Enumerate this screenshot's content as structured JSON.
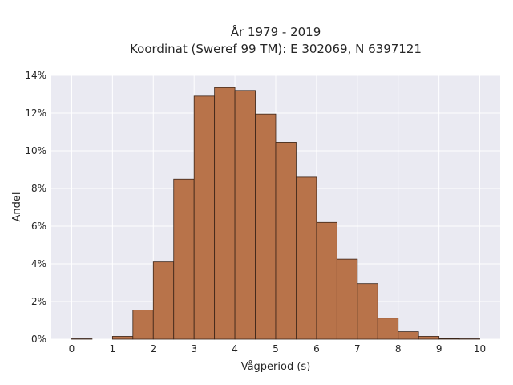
{
  "chart_data": {
    "type": "bar",
    "title_line1": "År 1979 - 2019",
    "title_line2": "Koordinat (Sweref 99 TM): E 302069, N 6397121",
    "xlabel": "Vågperiod (s)",
    "ylabel": "Andel",
    "xlim": [
      -0.5,
      10.5
    ],
    "ylim": [
      0,
      14
    ],
    "x_ticks": [
      "0",
      "1",
      "2",
      "3",
      "4",
      "5",
      "6",
      "7",
      "8",
      "9",
      "10"
    ],
    "y_ticks": [
      "0%",
      "2%",
      "4%",
      "6%",
      "8%",
      "10%",
      "12%",
      "14%"
    ],
    "bin_width": 0.5,
    "bins_start": [
      0,
      0.5,
      1,
      1.5,
      2,
      2.5,
      3,
      3.5,
      4,
      4.5,
      5,
      5.5,
      6,
      6.5,
      7,
      7.5,
      8,
      8.5,
      9,
      9.5
    ],
    "values": [
      0.02,
      0.0,
      0.15,
      1.55,
      4.1,
      8.5,
      12.9,
      13.35,
      13.2,
      11.95,
      10.45,
      8.6,
      6.2,
      4.25,
      2.95,
      1.12,
      0.4,
      0.15,
      0.03,
      0.02
    ],
    "grid": true,
    "colors": {
      "bar_fill": "#b8734a",
      "bar_edge": "#3a2418",
      "plot_bg": "#eaeaf2",
      "grid": "#ffffff"
    }
  }
}
